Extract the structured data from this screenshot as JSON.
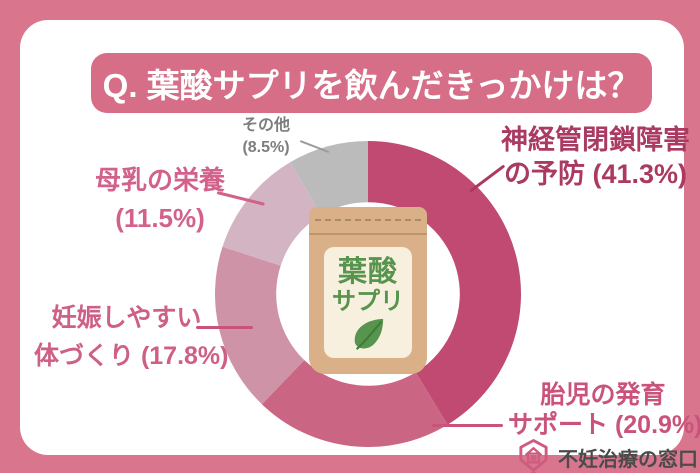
{
  "header": {
    "title": "Q. 葉酸サプリを飲んだきっかけは？"
  },
  "chart_data": {
    "type": "pie",
    "variant": "donut",
    "title": "Q. 葉酸サプリを飲んだきっかけは？",
    "start_angle_deg": 0,
    "direction": "clockwise",
    "inner_radius_ratio": 0.6,
    "legend_position": "callout-labels",
    "segments": [
      {
        "id": "neural-tube",
        "label": "神経管閉鎖障害の予防",
        "value": 41.3,
        "color": "#c04a72"
      },
      {
        "id": "fetal-growth",
        "label": "胎児の発育サポート",
        "value": 20.9,
        "color": "#cb6584"
      },
      {
        "id": "fertility",
        "label": "妊娠しやすい体づくり",
        "value": 17.8,
        "color": "#cf93a8"
      },
      {
        "id": "breast-milk",
        "label": "母乳の栄養",
        "value": 11.5,
        "color": "#d3b4c2"
      },
      {
        "id": "other",
        "label": "その他",
        "value": 8.5,
        "color": "#bcbbbc"
      }
    ]
  },
  "callouts": {
    "neural": {
      "line1": "神経管閉鎖障害",
      "line2": "の予防 (41.3%)"
    },
    "taiji": {
      "line1": "胎児の発育",
      "line2": "サポート (20.9%)"
    },
    "ninshin": {
      "line1": "妊娠しやすい",
      "line2": "体づくり (17.8%)"
    },
    "bonyu": {
      "line1": "母乳の栄養",
      "line2": "(11.5%)"
    },
    "sonota": {
      "line1": "その他",
      "line2": "(8.5%)"
    }
  },
  "center_illustration": {
    "product_line1": "葉酸",
    "product_line2": "サプリ"
  },
  "footer": {
    "brand": "不妊治療の窓口"
  },
  "colors": {
    "frame_pink": "#d9768e",
    "banner_pink": "#d76e88",
    "label_dark": "#aa3a62",
    "logo_pink": "#cf5b80",
    "pouch_tan": "#d9b088",
    "leaf_green": "#57944e"
  }
}
